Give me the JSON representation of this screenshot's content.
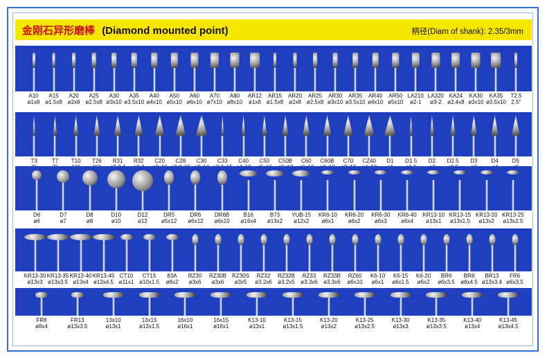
{
  "title_cn": "金刚石异形磨棒",
  "title_en": "(Diamond mounted point)",
  "shank": "柄径(Diam of shank): 2.35/3mm",
  "rows": [
    {
      "kind": "cyl",
      "items": [
        [
          "A10",
          "ø1x8"
        ],
        [
          "A15",
          "ø1.5x8"
        ],
        [
          "A20",
          "ø2x8"
        ],
        [
          "A25",
          "ø2.5x8"
        ],
        [
          "A30",
          "ø3x10"
        ],
        [
          "A35",
          "ø3.5x10"
        ],
        [
          "A40",
          "ø4x10"
        ],
        [
          "A50",
          "ø5x10"
        ],
        [
          "A60",
          "ø6x10"
        ],
        [
          "A70",
          "ø7x10"
        ],
        [
          "A80",
          "ø8x10"
        ],
        [
          "AR12",
          "ø1x8"
        ],
        [
          "AR15",
          "ø1.5x8"
        ],
        [
          "AR20",
          "ø2x8"
        ],
        [
          "AR25",
          "ø2.5x8"
        ],
        [
          "AR30",
          "ø3x10"
        ],
        [
          "AR35",
          "ø3.5x10"
        ],
        [
          "AR40",
          "ø4x10"
        ],
        [
          "AR50",
          "ø5x10"
        ],
        [
          "LA210",
          "ø2-1"
        ],
        [
          "LA320",
          "ø3-2"
        ],
        [
          "KA24",
          "ø2.4x8"
        ],
        [
          "KA30",
          "ø3x10"
        ],
        [
          "KA35",
          "ø3.5x10"
        ],
        [
          "T2.5",
          "2.5°"
        ]
      ]
    },
    {
      "kind": "cone",
      "items": [
        [
          "T3",
          "3°"
        ],
        [
          "T7",
          "7°"
        ],
        [
          "T10",
          "10°"
        ],
        [
          "T26",
          "26°"
        ],
        [
          "R31",
          "ø3.3-1"
        ],
        [
          "R32",
          "ø3-2"
        ],
        [
          "C20",
          "ø2x10"
        ],
        [
          "C28",
          "ø2.8x15"
        ],
        [
          "C30",
          "ø3x10"
        ],
        [
          "C33",
          "ø3.3x15"
        ],
        [
          "C40",
          "ø4x10"
        ],
        [
          "C50",
          "ø5x10"
        ],
        [
          "C50B",
          "ø5x13"
        ],
        [
          "C60",
          "ø6x10"
        ],
        [
          "C60B",
          "ø6x13"
        ],
        [
          "C70",
          "ø7x13"
        ],
        [
          "CZ40",
          "ø4x10"
        ],
        [
          "D1",
          "ø1"
        ],
        [
          "D1.5",
          "ø1.5"
        ],
        [
          "D2",
          "ø2"
        ],
        [
          "D2.5",
          "ø2.5"
        ],
        [
          "D3",
          "ø3"
        ],
        [
          "D4",
          "ø4"
        ],
        [
          "D5",
          "ø5"
        ]
      ]
    },
    {
      "kind": "ball",
      "items": [
        [
          "D6",
          "ø6"
        ],
        [
          "D7",
          "ø7"
        ],
        [
          "D8",
          "ø8"
        ],
        [
          "D10",
          "ø10"
        ],
        [
          "D12",
          "ø12"
        ],
        [
          "DR5",
          "ø5x12"
        ],
        [
          "DR6",
          "ø6x12"
        ],
        [
          "DR6B",
          "ø6x10"
        ],
        [
          "B16",
          "ø16x4"
        ],
        [
          "B73",
          "ø13x2"
        ],
        [
          "YUB-15",
          "ø12x2"
        ],
        [
          "KR6-10",
          "ø6x1"
        ],
        [
          "KR6-20",
          "ø6x2"
        ],
        [
          "KR6-30",
          "ø6x3"
        ],
        [
          "KR6-40",
          "ø6x4"
        ],
        [
          "KR13-10",
          "ø13x1"
        ],
        [
          "KR13-15",
          "ø13x1.5"
        ],
        [
          "KR13-20",
          "ø13x2"
        ],
        [
          "KR13-25",
          "ø13x2.5"
        ]
      ]
    },
    {
      "kind": "disc",
      "items": [
        [
          "KR13-30",
          "ø13x3"
        ],
        [
          "KR13-35",
          "ø13x3.5"
        ],
        [
          "KR13-40",
          "ø13x4"
        ],
        [
          "KR13-45",
          "ø13x4.5"
        ],
        [
          "CT10",
          "ø11x1"
        ],
        [
          "CT15",
          "ø10x1.5"
        ],
        [
          "83A",
          "ø8x2"
        ],
        [
          "RZ30",
          "ø3x6"
        ],
        [
          "RZ30B",
          "ø3x6"
        ],
        [
          "RZ30S",
          "ø3x5"
        ],
        [
          "RZ32",
          "ø3.2x6"
        ],
        [
          "RZ32B",
          "ø3.2x5"
        ],
        [
          "RZ33",
          "ø3.3x6"
        ],
        [
          "RZ33B",
          "ø3.3x6"
        ],
        [
          "RZ60",
          "ø6x10"
        ],
        [
          "K6-10",
          "ø6x1"
        ],
        [
          "K6-15",
          "ø6x1.5"
        ],
        [
          "K6-20",
          "ø6x2"
        ],
        [
          "BR6",
          "ø6x3.5"
        ],
        [
          "BR8",
          "ø8x4.5"
        ],
        [
          "BR13",
          "ø13x3.4"
        ],
        [
          "FR6",
          "ø6x3.5"
        ]
      ]
    },
    {
      "kind": "wheel",
      "items": [
        [
          "FR8",
          "ø8x4"
        ],
        [
          "FR13",
          "ø13x3.5"
        ],
        [
          "13x10",
          "ø13x1"
        ],
        [
          "13x15",
          "ø13x1.5"
        ],
        [
          "16x10",
          "ø16x1"
        ],
        [
          "16x15",
          "ø16x1"
        ],
        [
          "K13-10",
          "ø13x1"
        ],
        [
          "K13-15",
          "ø13x1.5"
        ],
        [
          "K13-20",
          "ø13x2"
        ],
        [
          "K13-25",
          "ø13x2.5"
        ],
        [
          "K13-30",
          "ø13x3"
        ],
        [
          "K13-35",
          "ø13x3.5"
        ],
        [
          "K13-40",
          "ø13x4"
        ],
        [
          "K13-45",
          "ø13x4.5"
        ]
      ]
    }
  ]
}
